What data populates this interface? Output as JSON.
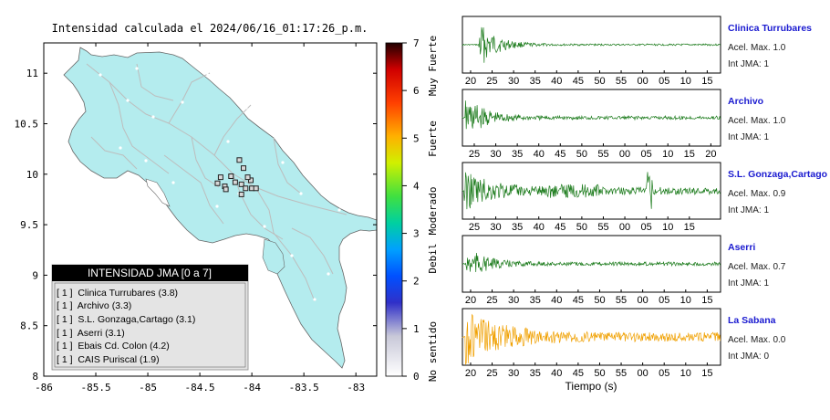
{
  "map": {
    "title": "Intensidad calculada el 2024/06/16_01:17:26_p.m.",
    "x_ticks": [
      "-86",
      "-85.5",
      "-85",
      "-84.5",
      "-84",
      "-83.5",
      "-83"
    ],
    "y_ticks": [
      "11",
      "10.5",
      "10",
      "9.5",
      "9",
      "8.5",
      "8"
    ],
    "colors": {
      "land": "#b4ecee",
      "sea": "#ffffff",
      "roads": "#b8b8b8",
      "border": "#555555"
    }
  },
  "scale": {
    "ticks": [
      "0",
      "1",
      "2",
      "3",
      "4",
      "5",
      "6",
      "7"
    ],
    "categories": [
      "No sentido",
      "Debil",
      "Moderado",
      "Fuerte",
      "Muy Fuerte"
    ]
  },
  "legend": {
    "title": "INTENSIDAD JMA [0 a 7]",
    "items": [
      "[ 1 ]  Clinica Turrubares (3.8)",
      "[ 1 ]  Archivo (3.3)",
      "[ 1 ]  S.L. Gonzaga,Cartago (3.1)",
      "[ 1 ]  Aserri (3.1)",
      "[ 1 ]  Ebais Cd. Colon (4.2)",
      "[ 1 ]  CAIS Puriscal (1.9)"
    ]
  },
  "waveforms": [
    {
      "station": "Clinica Turrubares",
      "acel": "Acel. Max. 1.0",
      "int": "Int JMA: 1",
      "color": "#1a7a1a",
      "ticks": [
        "20",
        "25",
        "30",
        "35",
        "40",
        "45",
        "50",
        "55",
        "00",
        "05",
        "10",
        "15"
      ],
      "first": 20
    },
    {
      "station": "Archivo",
      "acel": "Acel. Max. 1.0",
      "int": "Int JMA: 1",
      "color": "#1a7a1a",
      "ticks": [
        "25",
        "30",
        "35",
        "40",
        "45",
        "50",
        "55",
        "00",
        "05",
        "10",
        "15",
        "20"
      ],
      "first": 25
    },
    {
      "station": "S.L. Gonzaga,Cartago",
      "acel": "Acel. Max. 0.9",
      "int": "Int JMA: 1",
      "color": "#1a7a1a",
      "ticks": [
        "25",
        "30",
        "35",
        "40",
        "45",
        "50",
        "55",
        "00",
        "05",
        "10",
        "15"
      ],
      "first": 25
    },
    {
      "station": "Aserri",
      "acel": "Acel. Max. 0.7",
      "int": "Int JMA: 1",
      "color": "#1a7a1a",
      "ticks": [
        "20",
        "25",
        "30",
        "35",
        "40",
        "45",
        "50",
        "55",
        "00",
        "05",
        "10",
        "15"
      ],
      "first": 20
    },
    {
      "station": "La Sabana",
      "acel": "Acel. Max. 0.0",
      "int": "Int JMA: 0",
      "color": "#f0a000",
      "ticks": [
        "20",
        "25",
        "30",
        "35",
        "40",
        "45",
        "50",
        "55",
        "00",
        "05",
        "10",
        "15"
      ],
      "first": 20
    }
  ],
  "xlabel": "Tiempo (s)",
  "chart_data": {
    "type": "scatter",
    "title": "Intensidad calculada el 2024/06/16_01:17:26_p.m.",
    "xlim": [
      -86,
      -82.8
    ],
    "ylim": [
      8,
      11.3
    ],
    "x_ticks": [
      -86,
      -85.5,
      -85,
      -84.5,
      -84,
      -83.5,
      -83
    ],
    "y_ticks": [
      8,
      8.5,
      9,
      9.5,
      10,
      10.5,
      11
    ],
    "colorbar": {
      "min": 0,
      "max": 7,
      "labels": [
        "No sentido",
        "Debil",
        "Moderado",
        "Fuerte",
        "Muy Fuerte"
      ]
    },
    "stations": [
      {
        "x": -84.12,
        "y": 10.14
      },
      {
        "x": -84.2,
        "y": 9.98
      },
      {
        "x": -84.08,
        "y": 10.06
      },
      {
        "x": -84.3,
        "y": 9.97
      },
      {
        "x": -84.33,
        "y": 9.91
      },
      {
        "x": -84.26,
        "y": 9.88
      },
      {
        "x": -84.16,
        "y": 9.92
      },
      {
        "x": -84.1,
        "y": 9.9
      },
      {
        "x": -84.06,
        "y": 9.86
      },
      {
        "x": -84.0,
        "y": 9.86
      },
      {
        "x": -83.96,
        "y": 9.86
      },
      {
        "x": -84.01,
        "y": 9.94
      },
      {
        "x": -84.1,
        "y": 9.8
      },
      {
        "x": -84.25,
        "y": 9.85
      },
      {
        "x": -84.04,
        "y": 9.97
      }
    ]
  }
}
